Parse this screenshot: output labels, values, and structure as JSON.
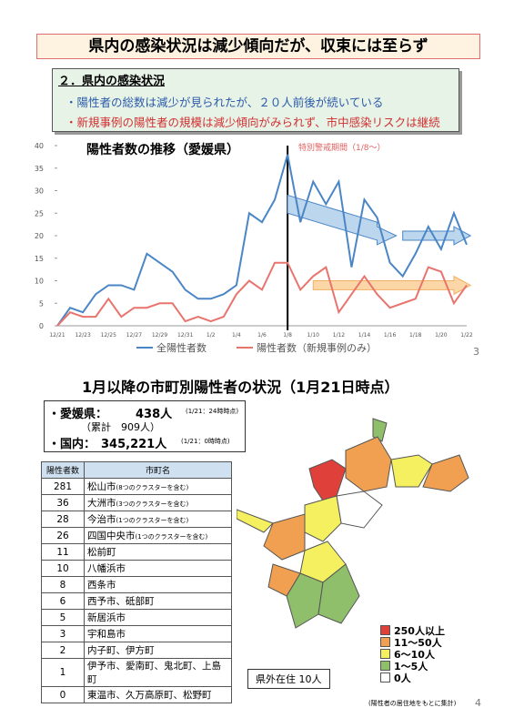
{
  "page1": {
    "title": "県内の感染状況は減少傾向だが、収束には至らず",
    "section": "２．県内の感染状況",
    "bullets": [
      "・陽性者の総数は減少が見られたが、２０人前後が続いている",
      "・新規事例の陽性者の規模は減少傾向がみられず、市中感染リスクは継続"
    ],
    "page_number": "3"
  },
  "chart_data": {
    "type": "line",
    "title": "陽性者数の推移（愛媛県）",
    "annotation": "特別警戒期間（1/8～）",
    "categories": [
      "12/21",
      null,
      "12/23",
      null,
      "12/25",
      null,
      "12/27",
      null,
      "12/29",
      null,
      "12/31",
      null,
      "1/2",
      null,
      "1/4",
      null,
      "1/6",
      null,
      "1/8",
      null,
      "1/10",
      null,
      "1/12",
      null,
      "1/14",
      null,
      "1/16",
      null,
      "1/18",
      null,
      "1/20",
      null,
      "1/22"
    ],
    "series": [
      {
        "name": "全陽性者数",
        "color": "#4a86c5",
        "values": [
          0,
          4,
          3,
          7,
          9,
          9,
          8,
          16,
          14,
          12,
          8,
          6,
          6,
          7,
          9,
          25,
          23,
          28,
          38,
          23,
          32,
          27,
          32,
          13,
          28,
          24,
          14,
          11,
          16,
          22,
          17,
          25,
          18
        ]
      },
      {
        "name": "陽性者数（新規事例のみ）",
        "color": "#e8746e",
        "values": [
          0,
          3,
          2,
          2,
          6,
          2,
          4,
          4,
          5,
          5,
          1,
          2,
          1,
          2,
          7,
          10,
          8,
          14,
          14,
          8,
          11,
          13,
          3,
          7,
          11,
          7,
          4,
          5,
          6,
          13,
          12,
          5,
          9
        ]
      }
    ],
    "ylim": [
      0,
      40
    ],
    "yticks": [
      0,
      5,
      10,
      15,
      20,
      25,
      30,
      35,
      40
    ]
  },
  "page2": {
    "title": "1月以降の市町別陽性者の状況（1月21日時点）",
    "summary": {
      "ehime_label": "・愛媛県：",
      "ehime_value": "438人",
      "ehime_note": "(1/21：24時時点)",
      "cumulative": "（累計　909人）",
      "japan_label": "・国内：",
      "japan_value": "345,221人",
      "japan_note": "(1/21：0時時点)"
    },
    "table": {
      "header": [
        "陽性者数",
        "市町名"
      ],
      "rows": [
        [
          "281",
          "松山市",
          "(8つのクラスターを含む)"
        ],
        [
          "36",
          "大洲市",
          "(3つのクラスターを含む)"
        ],
        [
          "28",
          "今治市",
          "(1つのクラスターを含む)"
        ],
        [
          "26",
          "四国中央市",
          "(1つのクラスターを含む)"
        ],
        [
          "11",
          "松前町",
          null
        ],
        [
          "10",
          "八幡浜市",
          null
        ],
        [
          "8",
          "西条市",
          null
        ],
        [
          "6",
          "西予市、砥部町",
          null
        ],
        [
          "5",
          "新居浜市",
          null
        ],
        [
          "3",
          "宇和島市",
          null
        ],
        [
          "2",
          "内子町、伊方町",
          null
        ],
        [
          "1",
          "伊予市、愛南町、鬼北町、上島町",
          null
        ],
        [
          "0",
          "東温市、久万高原町、松野町",
          null
        ]
      ]
    },
    "legend": [
      "250人以上",
      "11～50人",
      "6～10人",
      "1～5人",
      "0人"
    ],
    "outside": "県外在住 10人",
    "map_note": "(陽性者の居住地をもとに集計)",
    "page_number": "4"
  }
}
